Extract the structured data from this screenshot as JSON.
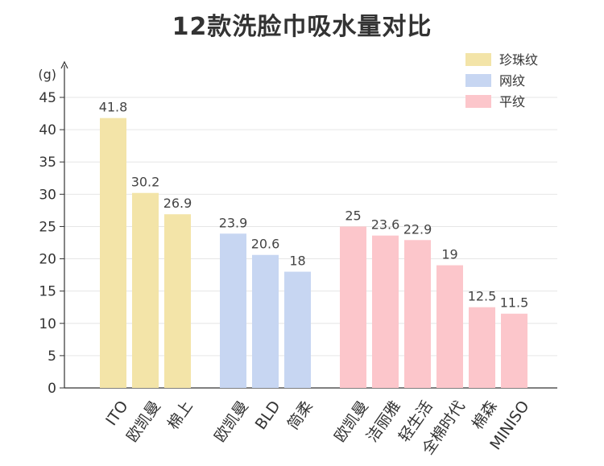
{
  "chart_data": {
    "type": "bar",
    "title": "12款洗脸巾吸水量对比",
    "ylabel": "(g)",
    "xlabel": "",
    "ylim": [
      0,
      45
    ],
    "yticks": [
      0,
      5,
      10,
      15,
      20,
      25,
      30,
      35,
      40,
      45
    ],
    "grid": true,
    "legend_position": "top-right",
    "series": [
      {
        "name": "珍珠纹",
        "color": "#f3e4a8",
        "categories": [
          "ITO",
          "欧凯曼",
          "棉上"
        ],
        "values": [
          41.8,
          30.2,
          26.9
        ],
        "labels": [
          "41.8",
          "30.2",
          "26.9"
        ]
      },
      {
        "name": "网纹",
        "color": "#c7d6f2",
        "categories": [
          "欧凯曼",
          "BLD",
          "简柔"
        ],
        "values": [
          23.9,
          20.6,
          18
        ],
        "labels": [
          "23.9",
          "20.6",
          "18"
        ]
      },
      {
        "name": "平纹",
        "color": "#fcc6cb",
        "categories": [
          "欧凯曼",
          "洁丽雅",
          "轻生活",
          "全棉时代",
          "棉森",
          "MINISO"
        ],
        "values": [
          25,
          23.6,
          22.9,
          19,
          12.5,
          11.5
        ],
        "labels": [
          "25",
          "23.6",
          "22.9",
          "19",
          "12.5",
          "11.5"
        ]
      }
    ]
  }
}
